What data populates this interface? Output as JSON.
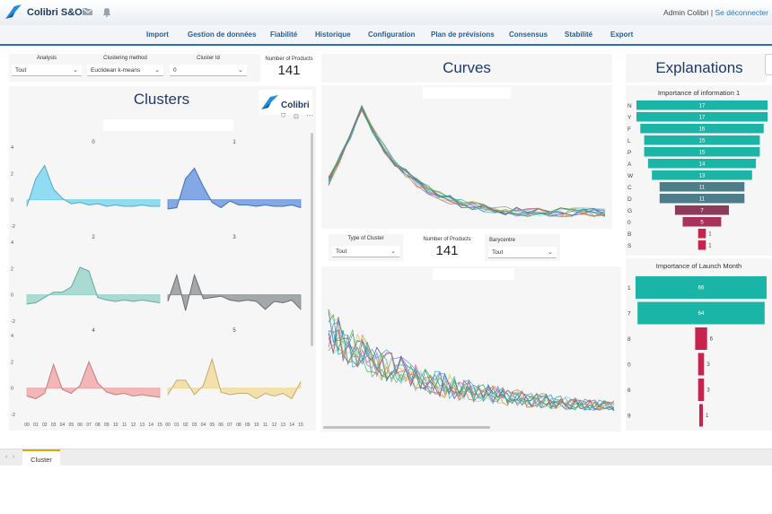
{
  "app": {
    "name": "Colibri S&OP"
  },
  "user": {
    "name": "Admin Colibri",
    "separator": " | ",
    "logout": "Se déconnecter"
  },
  "nav": [
    "Import",
    "Gestion de données",
    "Fiabilité",
    "Historique",
    "Configuration",
    "Plan de prévisions",
    "Consensus",
    "Stabilité",
    "Export"
  ],
  "filters": {
    "analysis": {
      "label": "Analysis",
      "value": "Tout"
    },
    "clustering": {
      "label": "Clustering method",
      "value": "Euclidean k-means"
    },
    "cluster_id": {
      "label": "Cluster Id",
      "value": "0"
    }
  },
  "cards": {
    "products_top": {
      "label": "Number of Products",
      "value": "141"
    },
    "products_mid": {
      "label": "Number of Products",
      "value": "141"
    }
  },
  "mid_filters": {
    "type_cluster": {
      "label": "Type of Cluster",
      "value": "Tout"
    },
    "barycentre": {
      "label": "Barycentre",
      "value": "Tout"
    }
  },
  "titles": {
    "clusters": "Clusters",
    "curves": "Curves",
    "explanations": "Explanations",
    "logo_text": "Colibri"
  },
  "colors": {
    "brand": "#1f3a6a",
    "accent": "#2f6fa8",
    "teal": "#1bb5a7",
    "slate": "#4d7d8a",
    "maroon": "#8c3b5b",
    "crimson": "#c8234d"
  },
  "tabs": {
    "active": "Cluster"
  },
  "chart_data": [
    {
      "type": "area",
      "name": "Clusters small multiples",
      "x": [
        "00",
        "01",
        "02",
        "03",
        "04",
        "05",
        "06",
        "07",
        "08",
        "09",
        "10",
        "11",
        "12",
        "13",
        "14",
        "15"
      ],
      "y_ticks": [
        "4",
        "2",
        "0",
        "-2"
      ],
      "ylim": [
        -2,
        4
      ],
      "panels": [
        {
          "id": "0",
          "color": "#6fd3f0",
          "values": [
            -0.5,
            1.6,
            2.6,
            0.8,
            0.1,
            -0.3,
            -0.2,
            -0.4,
            -0.3,
            -0.5,
            -0.4,
            -0.5,
            -0.5,
            -0.4,
            -0.5,
            -0.5
          ]
        },
        {
          "id": "1",
          "color": "#5b8fdf",
          "values": [
            -0.7,
            -0.6,
            1.6,
            2.4,
            1.0,
            -0.2,
            -0.6,
            -0.1,
            -0.4,
            -0.4,
            -0.5,
            -0.4,
            -0.5,
            -0.5,
            -0.4,
            -0.6
          ]
        },
        {
          "id": "2",
          "color": "#8fd1c5",
          "values": [
            -0.7,
            -0.6,
            -0.2,
            0.2,
            0.2,
            0.6,
            2.1,
            1.8,
            -0.2,
            -0.4,
            -0.5,
            -0.4,
            -0.5,
            -0.4,
            -0.5,
            -0.6
          ]
        },
        {
          "id": "3",
          "color": "#8a8d90",
          "values": [
            -0.5,
            1.5,
            -1.2,
            1.5,
            -0.3,
            -0.2,
            -0.1,
            -0.4,
            -0.5,
            -0.4,
            -0.5,
            -1.1,
            -0.5,
            -0.6,
            -0.4,
            -1.1
          ]
        },
        {
          "id": "4",
          "color": "#f2a0a0",
          "values": [
            -0.6,
            -0.8,
            -0.4,
            1.8,
            -0.1,
            -0.4,
            0.2,
            2.0,
            0.4,
            -0.3,
            -0.5,
            -0.4,
            -0.6,
            -0.5,
            -0.6,
            -0.7
          ]
        },
        {
          "id": "5",
          "color": "#f3d890",
          "values": [
            -0.5,
            0.6,
            0.6,
            -0.5,
            0.2,
            2.2,
            -0.3,
            -0.5,
            -0.4,
            -0.4,
            -0.8,
            -0.4,
            -0.6,
            -0.4,
            -0.8,
            0.5
          ]
        }
      ]
    },
    {
      "type": "bar",
      "name": "Importance of information 1",
      "title": "Importance of information 1",
      "categories": [
        "N",
        "Y",
        "F",
        "L",
        "P",
        "A",
        "W",
        "C",
        "D",
        "G",
        "0",
        "B",
        "S"
      ],
      "values": [
        17,
        17,
        16,
        15,
        15,
        14,
        13,
        11,
        11,
        7,
        5,
        1,
        1
      ],
      "colors": [
        "#1bb5a7",
        "#1bb5a7",
        "#1bb5a7",
        "#1bb5a7",
        "#1bb5a7",
        "#1bb5a7",
        "#1bb5a7",
        "#4d7d8a",
        "#4d7d8a",
        "#8c3b5b",
        "#a8325a",
        "#c8234d",
        "#c8234d"
      ]
    },
    {
      "type": "bar",
      "name": "Importance of Launch Month",
      "title": "Importance of Launch Month",
      "categories": [
        "1",
        "7",
        "8",
        "0",
        "6",
        "9"
      ],
      "values": [
        66,
        64,
        6,
        3,
        3,
        1
      ],
      "colors": [
        "#1bb5a7",
        "#1bb5a7",
        "#c8234d",
        "#c8234d",
        "#c8234d",
        "#c8234d"
      ]
    }
  ]
}
